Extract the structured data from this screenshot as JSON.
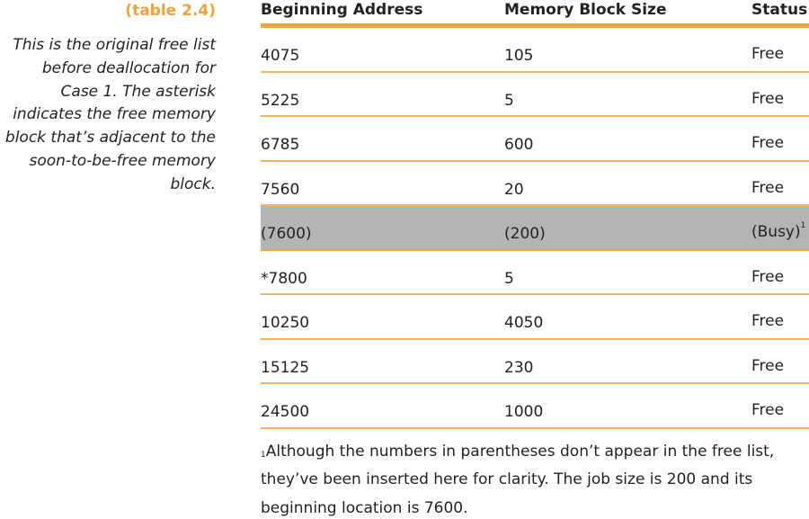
{
  "caption": {
    "label": "(table 2.4)",
    "text": "This is the original free list before deallocation for Case 1. The asterisk indicates the free memory block that’s adjacent to the soon-to-be-free memory block."
  },
  "table": {
    "headers": [
      "Beginning Address",
      "Memory Block Size",
      "Status"
    ],
    "rows": [
      {
        "address": "4075",
        "size": "105",
        "status": "Free"
      },
      {
        "address": "5225",
        "size": "5",
        "status": "Free"
      },
      {
        "address": "6785",
        "size": "600",
        "status": "Free"
      },
      {
        "address": "7560",
        "size": "20",
        "status": "Free"
      },
      {
        "address": "(7600)",
        "size": "(200)",
        "status": "(Busy)",
        "footnote_ref": "1"
      },
      {
        "address": "*7800",
        "size": "5",
        "status": "Free"
      },
      {
        "address": "10250",
        "size": "4050",
        "status": "Free"
      },
      {
        "address": "15125",
        "size": "230",
        "status": "Free"
      },
      {
        "address": "24500",
        "size": "1000",
        "status": "Free"
      }
    ]
  },
  "footnote": {
    "marker": "1",
    "text": "Although the numbers in parentheses don’t appear in the free list, they’ve been inserted here for clarity. The job size is 200 and its beginning location is 7600."
  },
  "colors": {
    "accent": "#f0a33b",
    "highlight_row": "#b4b4b4"
  }
}
